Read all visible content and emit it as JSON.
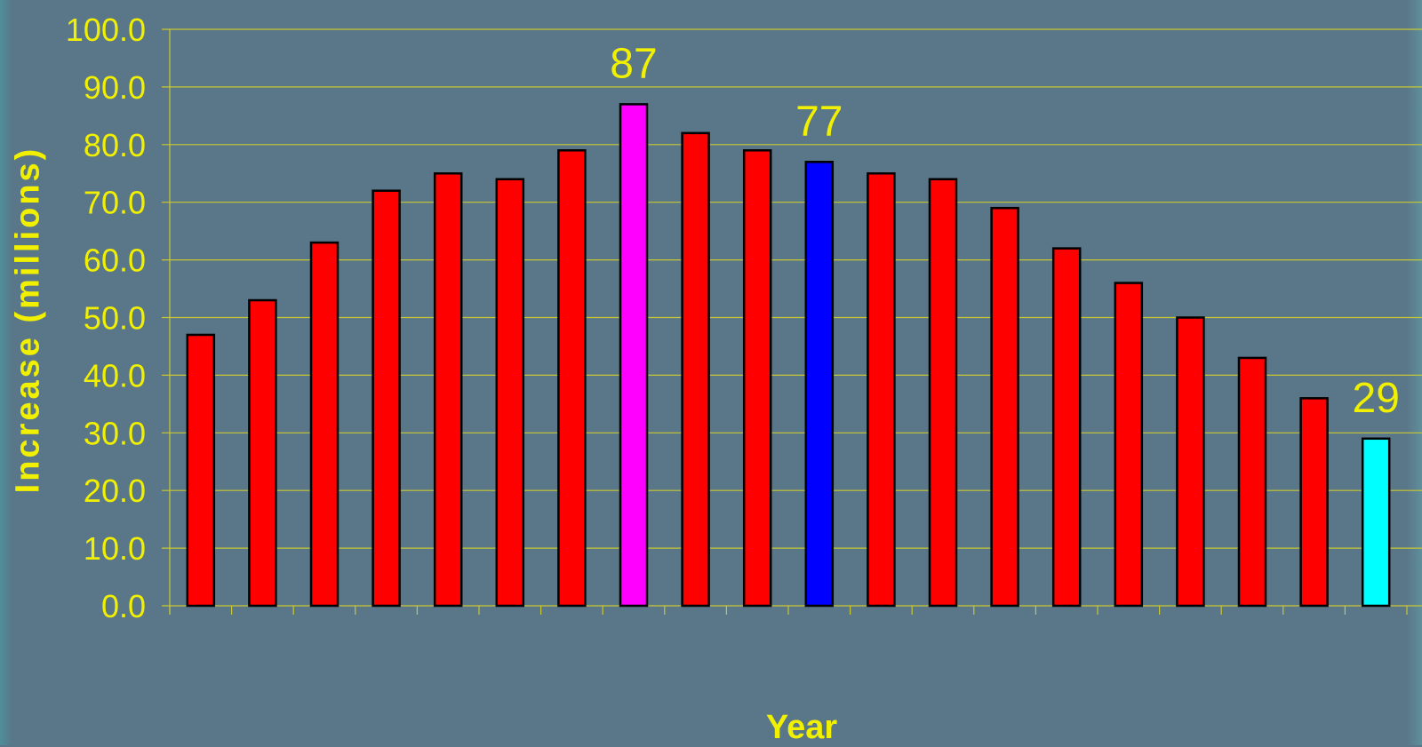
{
  "chart_data": {
    "type": "bar",
    "xlabel": "Year",
    "ylabel": "Increase (millions)",
    "ylim": [
      0,
      100
    ],
    "yticks": [
      "0.0",
      "10.0",
      "20.0",
      "30.0",
      "40.0",
      "50.0",
      "60.0",
      "70.0",
      "80.0",
      "90.0",
      "100.0"
    ],
    "grid": true,
    "values": [
      47,
      53,
      63,
      72,
      75,
      74,
      79,
      87,
      82,
      79,
      77,
      75,
      74,
      69,
      62,
      56,
      50,
      43,
      36,
      29
    ],
    "colors": [
      "#ff0000",
      "#ff0000",
      "#ff0000",
      "#ff0000",
      "#ff0000",
      "#ff0000",
      "#ff0000",
      "#ff00ff",
      "#ff0000",
      "#ff0000",
      "#0000ff",
      "#ff0000",
      "#ff0000",
      "#ff0000",
      "#ff0000",
      "#ff0000",
      "#ff0000",
      "#ff0000",
      "#ff0000",
      "#00ffff"
    ],
    "annotations": [
      {
        "index": 7,
        "text": "87"
      },
      {
        "index": 10,
        "text": "77"
      },
      {
        "index": 19,
        "text": "29"
      }
    ]
  },
  "colors": {
    "background": "#5a7689",
    "text": "#f0f000",
    "gridline": "#c8c832"
  }
}
